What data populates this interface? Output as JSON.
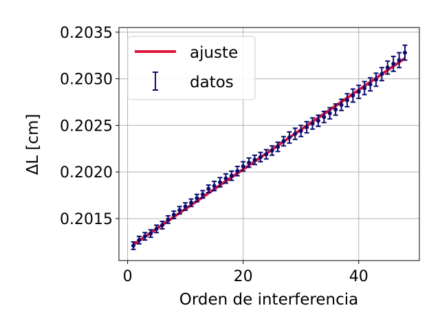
{
  "chart_data": {
    "type": "scatter",
    "title": "",
    "xlabel": "Orden de interferencia",
    "ylabel": "ΔL [cm]",
    "xlim": [
      -1.5,
      50.5
    ],
    "ylim": [
      0.20105,
      0.20355
    ],
    "xticks": [
      0,
      20,
      40
    ],
    "xtick_labels": [
      "0",
      "20",
      "40"
    ],
    "yticks": [
      0.2015,
      0.202,
      0.2025,
      0.203,
      0.2035
    ],
    "ytick_labels": [
      "0.2015",
      "0.2020",
      "0.2025",
      "0.2030",
      "0.2035"
    ],
    "grid": true,
    "legend_position": "upper-left",
    "colors": {
      "fit": "#dc143c",
      "data": "#0a0a6e",
      "grid": "#b0b0b0"
    },
    "series": [
      {
        "name": "ajuste",
        "kind": "line",
        "x": [
          1,
          48
        ],
        "y": [
          0.20122,
          0.20322
        ]
      },
      {
        "name": "datos",
        "kind": "errorbar",
        "x": [
          1,
          2,
          3,
          4,
          5,
          6,
          7,
          8,
          9,
          10,
          11,
          12,
          13,
          14,
          15,
          16,
          17,
          18,
          19,
          20,
          21,
          22,
          23,
          24,
          25,
          26,
          27,
          28,
          29,
          30,
          31,
          32,
          33,
          34,
          35,
          36,
          37,
          38,
          39,
          40,
          41,
          42,
          43,
          44,
          45,
          46,
          47,
          48
        ],
        "y": [
          0.20121,
          0.20127,
          0.20131,
          0.20134,
          0.20139,
          0.20143,
          0.20149,
          0.20154,
          0.20159,
          0.20163,
          0.20167,
          0.20172,
          0.20176,
          0.20182,
          0.20185,
          0.20189,
          0.20193,
          0.20196,
          0.20201,
          0.20206,
          0.2021,
          0.20213,
          0.20216,
          0.20219,
          0.20223,
          0.20227,
          0.20233,
          0.20237,
          0.20241,
          0.20244,
          0.20248,
          0.20252,
          0.20255,
          0.20259,
          0.20263,
          0.20267,
          0.20272,
          0.20277,
          0.20282,
          0.20286,
          0.2029,
          0.20294,
          0.20299,
          0.20305,
          0.20312,
          0.20316,
          0.2032,
          0.20328
        ],
        "yerr": [
          4e-05,
          4e-05,
          4e-05,
          4e-05,
          4e-05,
          4e-05,
          4e-05,
          4e-05,
          4e-05,
          4e-05,
          4e-05,
          4e-05,
          4e-05,
          4e-05,
          5e-05,
          5e-05,
          5e-05,
          5e-05,
          5e-05,
          5e-05,
          5e-05,
          5e-05,
          5e-05,
          5e-05,
          5e-05,
          5e-05,
          5e-05,
          6e-05,
          6e-05,
          6e-05,
          6e-05,
          6e-05,
          6e-05,
          6e-05,
          6e-05,
          6e-05,
          6e-05,
          7e-05,
          7e-05,
          7e-05,
          7e-05,
          7e-05,
          7e-05,
          7e-05,
          7e-05,
          8e-05,
          8e-05,
          8e-05
        ]
      }
    ]
  }
}
